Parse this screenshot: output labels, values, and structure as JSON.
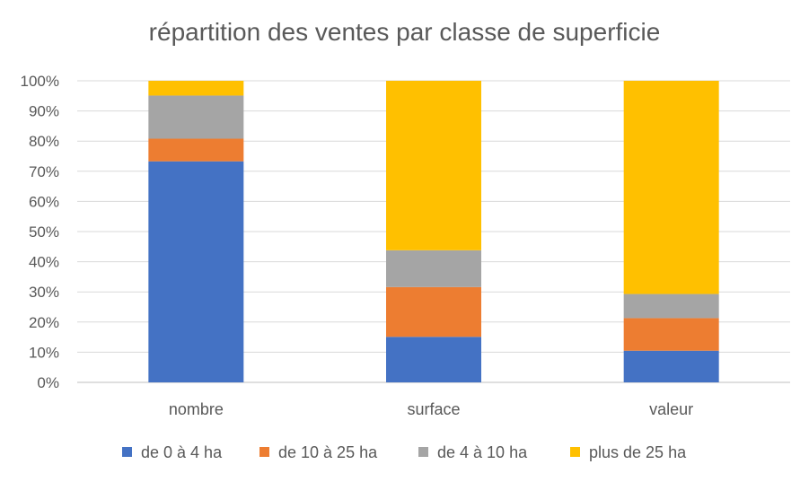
{
  "chart_data": {
    "type": "bar",
    "stacked": true,
    "percent_stacked": true,
    "title": "répartition des ventes par classe de superficie",
    "categories": [
      "nombre",
      "surface",
      "valeur"
    ],
    "series": [
      {
        "name": "de 0 à 4 ha",
        "values": [
          73.3,
          15.1,
          10.5
        ],
        "color": "#4472C4"
      },
      {
        "name": "de 10 à 25 ha",
        "values": [
          7.5,
          16.5,
          10.8
        ],
        "color": "#ED7D31"
      },
      {
        "name": "de 4 à 10 ha",
        "values": [
          14.3,
          12.2,
          8.0
        ],
        "color": "#A5A5A5"
      },
      {
        "name": "plus de 25 ha",
        "values": [
          4.9,
          56.2,
          70.7
        ],
        "color": "#FFC000"
      }
    ],
    "ylim": [
      0,
      100
    ],
    "yticks": [
      "0%",
      "10%",
      "20%",
      "30%",
      "40%",
      "50%",
      "60%",
      "70%",
      "80%",
      "90%",
      "100%"
    ],
    "grid": true,
    "legend_position": "bottom"
  }
}
